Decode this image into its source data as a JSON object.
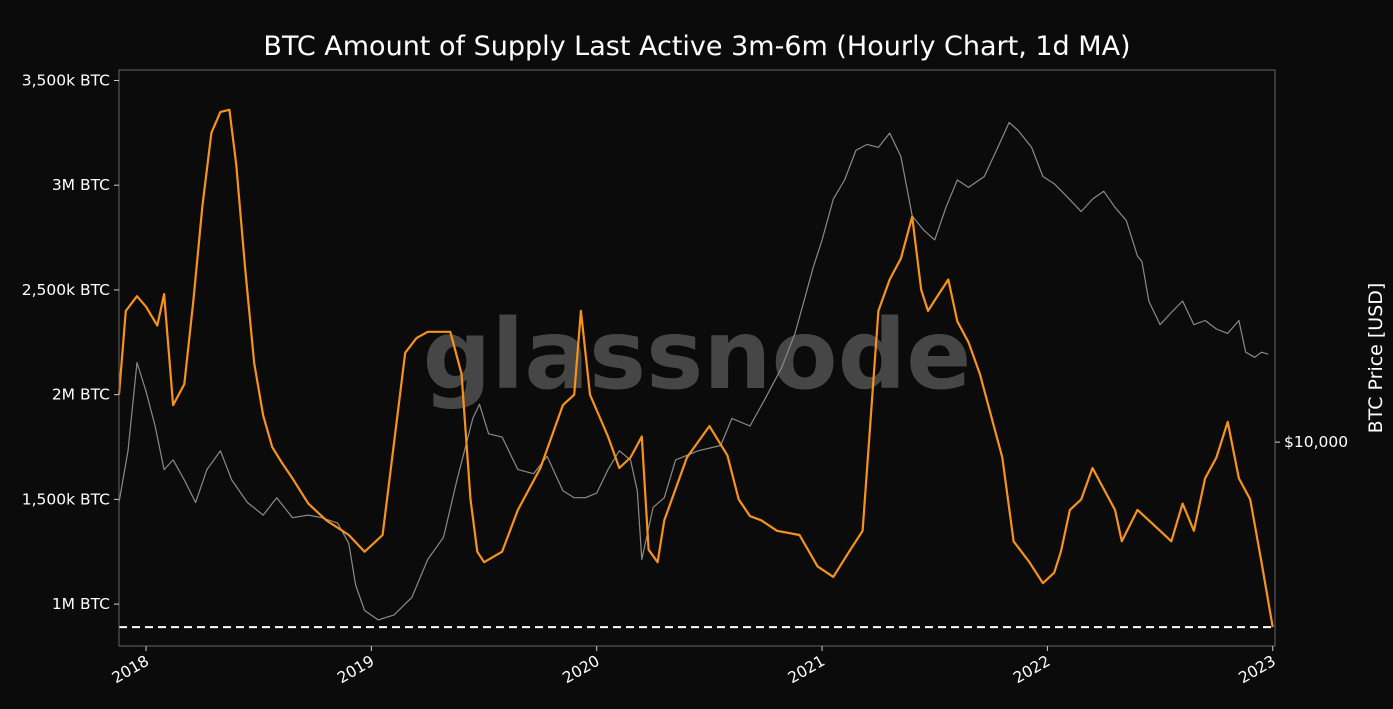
{
  "chart_data": {
    "type": "line",
    "title": "BTC Amount of Supply Last Active 3m-6m (Hourly Chart, 1d MA)",
    "watermark": "glassnode",
    "xlabel": "",
    "ylabel": "",
    "ylabel_right": "BTC Price [USD]",
    "xlim": [
      2017.88,
      2023.01
    ],
    "ylim": [
      800000,
      3550000
    ],
    "x_ticks": [
      {
        "value": 2018,
        "label": "2018"
      },
      {
        "value": 2019,
        "label": "2019"
      },
      {
        "value": 2020,
        "label": "2020"
      },
      {
        "value": 2021,
        "label": "2021"
      },
      {
        "value": 2022,
        "label": "2022"
      },
      {
        "value": 2023,
        "label": "2023"
      }
    ],
    "y_ticks": [
      {
        "value": 1000000,
        "label": "1M BTC"
      },
      {
        "value": 1500000,
        "label": "1,500k BTC"
      },
      {
        "value": 2000000,
        "label": "2M BTC"
      },
      {
        "value": 2500000,
        "label": "2,500k BTC"
      },
      {
        "value": 3000000,
        "label": "3M BTC"
      },
      {
        "value": 3500000,
        "label": "3,500k BTC"
      }
    ],
    "y2_scale": "log",
    "y2lim": [
      3000,
      90000
    ],
    "y2_ticks": [
      {
        "value": 10000,
        "label": "$10,000"
      }
    ],
    "grid": false,
    "reference_line": {
      "value": 890000,
      "style": "dashed",
      "color": "#ffffff"
    },
    "colors": {
      "supply": "#f7931a",
      "price": "#8a8a8a",
      "frame": "#666666",
      "background": "#0b0b0b"
    },
    "series": [
      {
        "axis": "left",
        "x": [
          2017.88,
          2017.91,
          2017.96,
          2018.0,
          2018.05,
          2018.08,
          2018.12,
          2018.17,
          2018.21,
          2018.25,
          2018.29,
          2018.33,
          2018.37,
          2018.4,
          2018.44,
          2018.48,
          2018.52,
          2018.56,
          2018.6,
          2018.65,
          2018.72,
          2018.8,
          2018.9,
          2018.97,
          2019.05,
          2019.15,
          2019.2,
          2019.25,
          2019.35,
          2019.4,
          2019.44,
          2019.47,
          2019.5,
          2019.58,
          2019.65,
          2019.75,
          2019.85,
          2019.9,
          2019.93,
          2019.97,
          2020.05,
          2020.1,
          2020.15,
          2020.2,
          2020.23,
          2020.27,
          2020.3,
          2020.4,
          2020.5,
          2020.58,
          2020.63,
          2020.68,
          2020.73,
          2020.8,
          2020.9,
          2020.98,
          2021.05,
          2021.12,
          2021.18,
          2021.25,
          2021.3,
          2021.35,
          2021.4,
          2021.44,
          2021.47,
          2021.5,
          2021.56,
          2021.6,
          2021.65,
          2021.7,
          2021.8,
          2021.85,
          2021.92,
          2021.98,
          2022.03,
          2022.06,
          2022.1,
          2022.15,
          2022.2,
          2022.3,
          2022.33,
          2022.4,
          2022.45,
          2022.5,
          2022.55,
          2022.6,
          2022.65,
          2022.7,
          2022.75,
          2022.8,
          2022.85,
          2022.9,
          2022.95,
          2023.0
        ],
        "y": [
          2000000,
          2400000,
          2470000,
          2420000,
          2330000,
          2480000,
          1950000,
          2050000,
          2450000,
          2900000,
          3250000,
          3350000,
          3360000,
          3100000,
          2600000,
          2150000,
          1900000,
          1750000,
          1680000,
          1600000,
          1480000,
          1400000,
          1330000,
          1250000,
          1330000,
          2200000,
          2270000,
          2300000,
          2300000,
          2100000,
          1500000,
          1250000,
          1200000,
          1250000,
          1450000,
          1650000,
          1950000,
          2000000,
          2400000,
          2000000,
          1800000,
          1650000,
          1700000,
          1800000,
          1260000,
          1200000,
          1400000,
          1700000,
          1850000,
          1710000,
          1500000,
          1420000,
          1400000,
          1350000,
          1330000,
          1180000,
          1130000,
          1250000,
          1350000,
          2400000,
          2550000,
          2650000,
          2850000,
          2500000,
          2400000,
          2450000,
          2550000,
          2350000,
          2250000,
          2100000,
          1700000,
          1300000,
          1200000,
          1100000,
          1150000,
          1250000,
          1450000,
          1500000,
          1650000,
          1450000,
          1300000,
          1450000,
          1400000,
          1350000,
          1300000,
          1480000,
          1350000,
          1600000,
          1700000,
          1870000,
          1600000,
          1500000,
          1200000,
          890000
        ]
      },
      {
        "axis": "right",
        "x": [
          2017.88,
          2017.92,
          2017.96,
          2018.0,
          2018.04,
          2018.08,
          2018.12,
          2018.17,
          2018.22,
          2018.27,
          2018.33,
          2018.38,
          2018.45,
          2018.52,
          2018.58,
          2018.65,
          2018.72,
          2018.78,
          2018.85,
          2018.9,
          2018.93,
          2018.97,
          2019.03,
          2019.1,
          2019.18,
          2019.25,
          2019.32,
          2019.38,
          2019.45,
          2019.48,
          2019.52,
          2019.58,
          2019.65,
          2019.72,
          2019.78,
          2019.85,
          2019.9,
          2019.95,
          2020.0,
          2020.05,
          2020.1,
          2020.15,
          2020.18,
          2020.2,
          2020.25,
          2020.3,
          2020.35,
          2020.45,
          2020.55,
          2020.6,
          2020.68,
          2020.75,
          2020.82,
          2020.88,
          2020.92,
          2020.96,
          2021.0,
          2021.05,
          2021.1,
          2021.15,
          2021.2,
          2021.25,
          2021.3,
          2021.35,
          2021.4,
          2021.45,
          2021.5,
          2021.55,
          2021.6,
          2021.65,
          2021.72,
          2021.78,
          2021.83,
          2021.87,
          2021.93,
          2021.98,
          2022.03,
          2022.08,
          2022.15,
          2022.2,
          2022.25,
          2022.3,
          2022.35,
          2022.4,
          2022.42,
          2022.45,
          2022.5,
          2022.55,
          2022.6,
          2022.65,
          2022.7,
          2022.75,
          2022.8,
          2022.85,
          2022.88,
          2022.92,
          2022.95,
          2022.98
        ],
        "y": [
          7000,
          9500,
          16000,
          13500,
          11000,
          8500,
          9000,
          8000,
          7000,
          8500,
          9500,
          8000,
          7000,
          6500,
          7200,
          6400,
          6500,
          6400,
          6200,
          5500,
          4300,
          3700,
          3500,
          3600,
          4000,
          5000,
          5700,
          8000,
          11500,
          12500,
          10500,
          10300,
          8500,
          8300,
          9200,
          7500,
          7200,
          7200,
          7400,
          8500,
          9500,
          9000,
          7500,
          5000,
          6800,
          7200,
          9000,
          9500,
          9800,
          11500,
          11000,
          13000,
          15500,
          19000,
          23000,
          28000,
          33000,
          42000,
          47000,
          56000,
          58000,
          57000,
          62000,
          54000,
          38000,
          35000,
          33000,
          40000,
          47000,
          45000,
          48000,
          57000,
          66000,
          63000,
          57000,
          48000,
          46000,
          43000,
          39000,
          42000,
          44000,
          40000,
          37000,
          30000,
          29000,
          23000,
          20000,
          21500,
          23000,
          20000,
          20500,
          19500,
          19000,
          20500,
          17000,
          16500,
          17000,
          16800
        ]
      }
    ]
  }
}
